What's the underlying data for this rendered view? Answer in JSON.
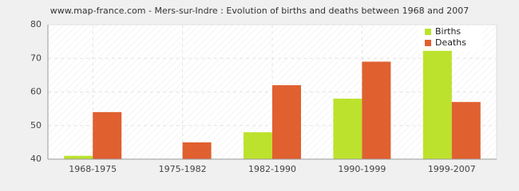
{
  "chart_data": {
    "type": "bar",
    "title": "www.map-france.com - Mers-sur-Indre : Evolution of births and deaths between 1968 and 2007",
    "categories": [
      "1968-1975",
      "1975-1982",
      "1982-1990",
      "1990-1999",
      "1999-2007"
    ],
    "series": [
      {
        "name": "Births",
        "color": "#bde22d",
        "values": [
          41,
          40,
          48,
          58,
          73
        ]
      },
      {
        "name": "Deaths",
        "color": "#e06030",
        "values": [
          54,
          45,
          62,
          69,
          57
        ]
      }
    ],
    "ylim": [
      40,
      80
    ],
    "yticks": [
      40,
      50,
      60,
      70,
      80
    ],
    "grid": true,
    "legend": "upper-right"
  }
}
